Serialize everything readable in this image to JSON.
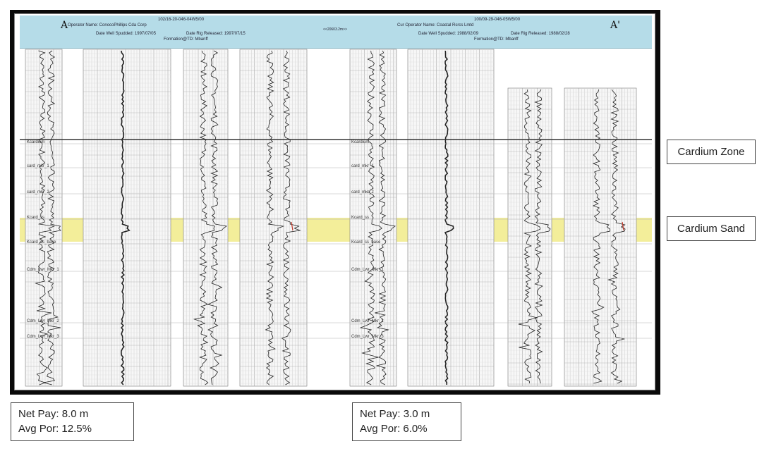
{
  "header": {
    "left": {
      "uwi": "102/16-20-046-04W5/00",
      "operator": "Operator Name: ConocoPhillips Cda Corp",
      "spudded": "Date Well Spudded: 1997/07/05",
      "rig_released": "Date Rig Released: 1997/07/15",
      "formation": "Formation@TD: Mbanff"
    },
    "right": {
      "uwi": "100/09-29-046-05W5/00",
      "operator": "Cur Operator Name: Coastal Rsrcs Lmtd",
      "spudded": "Date Well Spudded: 1988/02/09",
      "rig_released": "Date Rig Released: 1988/02/28",
      "formation": "Formation@TD: Mbanff"
    },
    "distance": "<<20603.2m>>",
    "label_a": "A",
    "label_a_prime": "A'"
  },
  "tops_left": [
    "Kcardium",
    "card_mkr_1",
    "card_mkr_2",
    "Kcard_ss",
    "Kcard_ss_base",
    "Cdm_Lwr_Mkr_1",
    "Cdm_Lwr_Mkr_2",
    "Cdm_Lwr_Mkr_3"
  ],
  "tops_right": [
    "Kcardium",
    "card_mkr_1",
    "card_mkr_2",
    "Kcard_ss",
    "Kcard_ss_base",
    "Cdm_Lwr_Mkr_1",
    "Cdm_Lwr_Mkr_2",
    "Cdm_Lwr_Mkr_3"
  ],
  "zones": {
    "cardium_zone": "Cardium Zone",
    "cardium_sand": "Cardium Sand"
  },
  "wells": [
    {
      "net_pay": "Net Pay: 8.0 m",
      "avg_por": "Avg Por: 12.5%"
    },
    {
      "net_pay": "Net Pay: 3.0 m",
      "avg_por": "Avg Por: 6.0%"
    }
  ],
  "colors": {
    "header_band": "#b5dce8",
    "sand_highlight": "#f3ee9a",
    "frame": "#0a0a0a"
  }
}
